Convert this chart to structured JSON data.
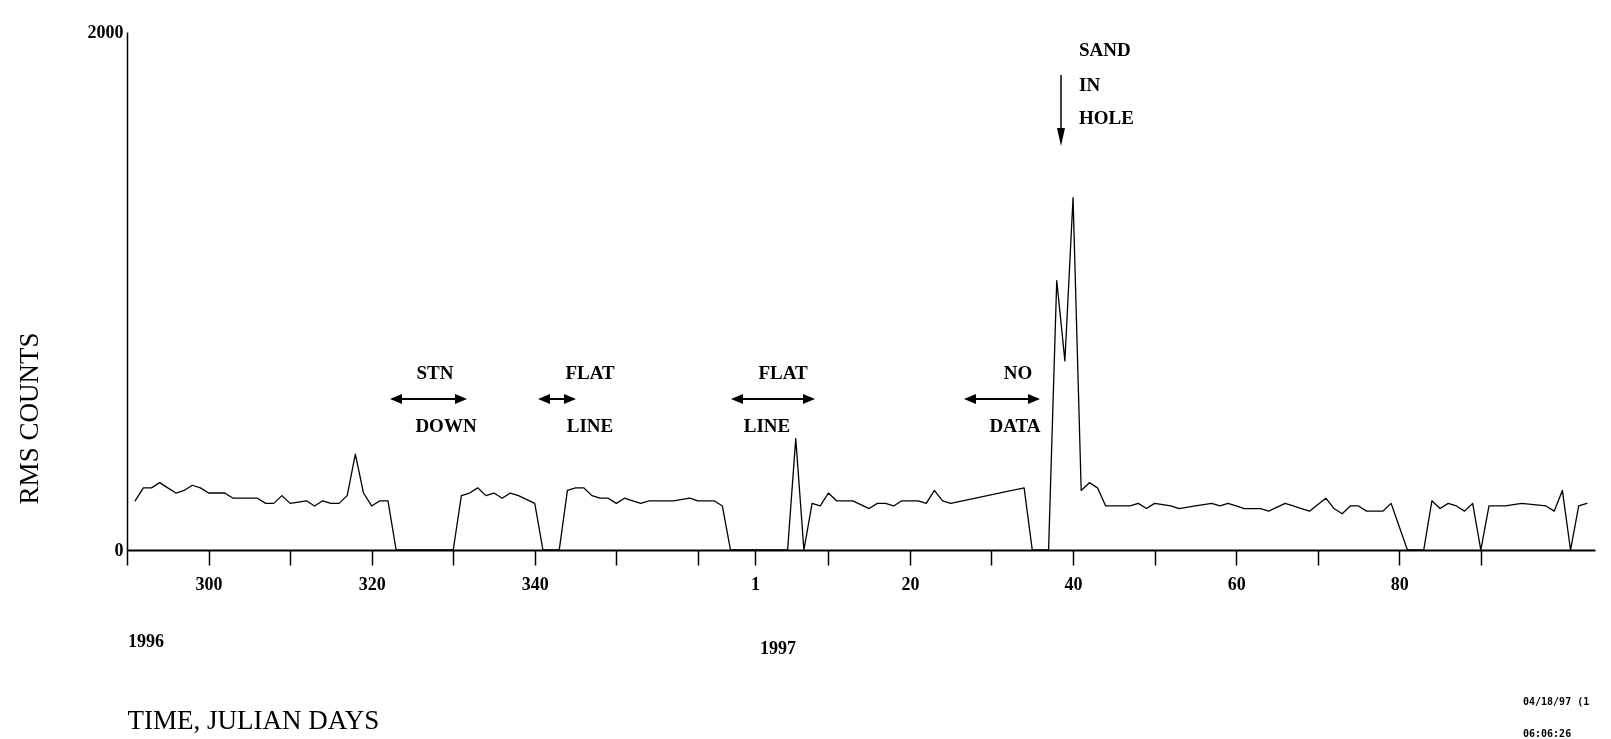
{
  "chart_data": {
    "type": "line",
    "xlabel": "TIME, JULIAN DAYS",
    "ylabel": "RMS COUNTS",
    "x": [
      "1996-10-17",
      "1996-10-18",
      "1996-10-19",
      "1996-10-20",
      "1996-10-21",
      "1996-10-22",
      "1996-10-23",
      "1996-10-24",
      "1996-10-25",
      "1996-10-26",
      "1996-10-27",
      "1996-10-28",
      "1996-10-29",
      "1996-10-31",
      "1996-11-01",
      "1996-11-02",
      "1996-11-03",
      "1996-11-04",
      "1996-11-05",
      "1996-11-07",
      "1996-11-08",
      "1996-11-09",
      "1996-11-10",
      "1996-11-11",
      "1996-11-12",
      "1996-11-13",
      "1996-11-14",
      "1996-11-15",
      "1996-11-16",
      "1996-11-17",
      "1996-11-18",
      "1996-11-25",
      "1996-11-26",
      "1996-11-27",
      "1996-11-28",
      "1996-11-29",
      "1996-11-30",
      "1996-12-01",
      "1996-12-02",
      "1996-12-03",
      "1996-12-05",
      "1996-12-06",
      "1996-12-08",
      "1996-12-09",
      "1996-12-10",
      "1996-12-11",
      "1996-12-12",
      "1996-12-13",
      "1996-12-14",
      "1996-12-15",
      "1996-12-16",
      "1996-12-17",
      "1996-12-18",
      "1996-12-19",
      "1996-12-20",
      "1996-12-22",
      "1996-12-24",
      "1996-12-25",
      "1996-12-26",
      "1996-12-27",
      "1996-12-28",
      "1996-12-29",
      "1997-01-05",
      "1997-01-06",
      "1997-01-07",
      "1997-01-08",
      "1997-01-09",
      "1997-01-10",
      "1997-01-11",
      "1997-01-13",
      "1997-01-15",
      "1997-01-16",
      "1997-01-17",
      "1997-01-18",
      "1997-01-19",
      "1997-01-20",
      "1997-01-21",
      "1997-01-22",
      "1997-01-23",
      "1997-01-24",
      "1997-01-25",
      "1997-02-03",
      "1997-02-04",
      "1997-02-06",
      "1997-02-07",
      "1997-02-08",
      "1997-02-09",
      "1997-02-10",
      "1997-02-11",
      "1997-02-12",
      "1997-02-13",
      "1997-02-16",
      "1997-02-17",
      "1997-02-18",
      "1997-02-19",
      "1997-02-21",
      "1997-02-22",
      "1997-02-24",
      "1997-02-26",
      "1997-02-27",
      "1997-02-28",
      "1997-03-01",
      "1997-03-02",
      "1997-03-04",
      "1997-03-05",
      "1997-03-07",
      "1997-03-08",
      "1997-03-09",
      "1997-03-10",
      "1997-03-12",
      "1997-03-13",
      "1997-03-14",
      "1997-03-15",
      "1997-03-16",
      "1997-03-17",
      "1997-03-18",
      "1997-03-19",
      "1997-03-20",
      "1997-03-22",
      "1997-03-24",
      "1997-03-25",
      "1997-03-26",
      "1997-03-27",
      "1997-03-28",
      "1997-03-29",
      "1997-03-30",
      "1997-03-31",
      "1997-04-01",
      "1997-04-03",
      "1997-04-05",
      "1997-04-08",
      "1997-04-09",
      "1997-04-10",
      "1997-04-11",
      "1997-04-12",
      "1997-04-13"
    ],
    "series": [
      {
        "color": "#000000",
        "values": [
          190,
          240,
          240,
          260,
          240,
          220,
          230,
          250,
          240,
          220,
          220,
          220,
          200,
          200,
          200,
          180,
          180,
          210,
          180,
          190,
          170,
          190,
          180,
          180,
          210,
          370,
          220,
          170,
          190,
          190,
          0,
          0,
          210,
          220,
          240,
          210,
          220,
          200,
          220,
          210,
          180,
          0,
          0,
          230,
          240,
          240,
          210,
          200,
          200,
          180,
          200,
          190,
          180,
          190,
          190,
          190,
          200,
          190,
          190,
          190,
          170,
          0,
          0,
          430,
          0,
          180,
          170,
          220,
          190,
          190,
          160,
          180,
          180,
          170,
          190,
          190,
          190,
          180,
          230,
          190,
          180,
          240,
          0,
          0,
          1040,
          730,
          1360,
          230,
          260,
          240,
          170,
          170,
          180,
          160,
          180,
          170,
          160,
          170,
          180,
          170,
          180,
          170,
          160,
          160,
          150,
          180,
          170,
          160,
          150,
          200,
          160,
          140,
          170,
          170,
          150,
          150,
          150,
          180,
          0,
          0,
          190,
          160,
          180,
          170,
          150,
          180,
          0,
          170,
          170,
          180,
          170,
          150,
          230,
          0,
          170,
          180
        ]
      }
    ],
    "xlim": [
      "1996-10-16",
      "1997-04-14"
    ],
    "xticks": [
      {
        "value": "1996-10-16",
        "label": null
      },
      {
        "value": "1996-10-26",
        "label": "300"
      },
      {
        "value": "1996-11-05",
        "label": null
      },
      {
        "value": "1996-11-15",
        "label": "320"
      },
      {
        "value": "1996-11-25",
        "label": null
      },
      {
        "value": "1996-12-05",
        "label": "340"
      },
      {
        "value": "1996-12-15",
        "label": null
      },
      {
        "value": "1996-12-25",
        "label": null
      },
      {
        "value": "1997-01-01",
        "label": "1"
      },
      {
        "value": "1997-01-10",
        "label": null
      },
      {
        "value": "1997-01-20",
        "label": "20"
      },
      {
        "value": "1997-01-30",
        "label": null
      },
      {
        "value": "1997-02-09",
        "label": "40"
      },
      {
        "value": "1997-02-19",
        "label": null
      },
      {
        "value": "1997-03-01",
        "label": "60"
      },
      {
        "value": "1997-03-11",
        "label": null
      },
      {
        "value": "1997-03-21",
        "label": "80"
      },
      {
        "value": "1997-03-31",
        "label": null
      }
    ],
    "ylim": [
      0,
      2000
    ],
    "yticks": [
      0,
      2000
    ],
    "annotations": [
      "STN",
      "DOWN",
      "FLAT",
      "LINE",
      "FLAT",
      "LINE",
      "NO",
      "DATA",
      "SAND",
      "IN",
      "HOLE",
      "1996",
      "1997",
      "04/18/97 (1",
      "06:06:26"
    ]
  }
}
